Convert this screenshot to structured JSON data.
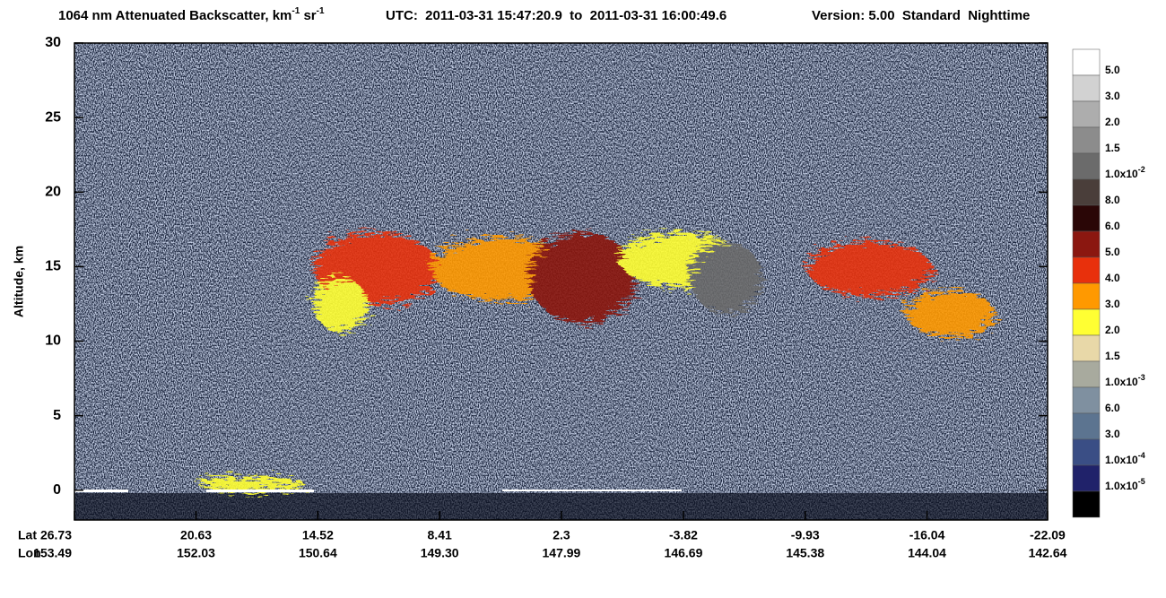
{
  "chart_data": {
    "type": "curtain",
    "title_segments": [
      {
        "text": "1064 nm Attenuated Backscatter, km"
      },
      {
        "sup": "-1"
      },
      {
        "text": " sr"
      },
      {
        "sup": "-1"
      }
    ],
    "utc": "UTC:  2011-03-31 15:47:20.9  to  2011-03-31 16:00:49.6",
    "version": "Version: 5.00  Standard  Nighttime",
    "ylabel": "Altitude, km",
    "ylim": [
      -2,
      30
    ],
    "yticks": [
      0,
      5,
      10,
      15,
      20,
      25,
      30
    ],
    "xlim": [
      26.73,
      -22.09
    ],
    "xticks": [
      26.73,
      20.63,
      14.52,
      8.41,
      2.3,
      -3.82,
      -9.93,
      -16.04,
      -22.09
    ],
    "lon_labels": [
      "153.49",
      "152.03",
      "150.64",
      "149.30",
      "147.99",
      "146.69",
      "145.38",
      "144.04",
      "142.64"
    ],
    "row_labels": [
      "Lat",
      "Lon"
    ],
    "colorbar": {
      "colors": [
        "#ffffff",
        "#d2d2d2",
        "#adadad",
        "#8c8c8c",
        "#6b6b6b",
        "#4a3e3a",
        "#2a0606",
        "#8b1710",
        "#e8300c",
        "#ff9900",
        "#ffff33",
        "#e8d8a8",
        "#a8aa9e",
        "#7f90a0",
        "#5c7490",
        "#3a4e85",
        "#20226a",
        "#000000"
      ],
      "labels": [
        {
          "text": "5.0"
        },
        {
          "text": "3.0"
        },
        {
          "text": "2.0"
        },
        {
          "text": "1.5"
        },
        {
          "text": "1.0x10",
          "sup": "-2"
        },
        {
          "text": "8.0"
        },
        {
          "text": "6.0"
        },
        {
          "text": "5.0"
        },
        {
          "text": "4.0"
        },
        {
          "text": "3.0"
        },
        {
          "text": "2.0"
        },
        {
          "text": "1.5"
        },
        {
          "text": "1.0x10",
          "sup": "-3"
        },
        {
          "text": "6.0"
        },
        {
          "text": "3.0"
        },
        {
          "text": "1.0x10",
          "sup": "-4"
        },
        {
          "text": "1.0x10",
          "sup": "-5"
        }
      ]
    }
  }
}
